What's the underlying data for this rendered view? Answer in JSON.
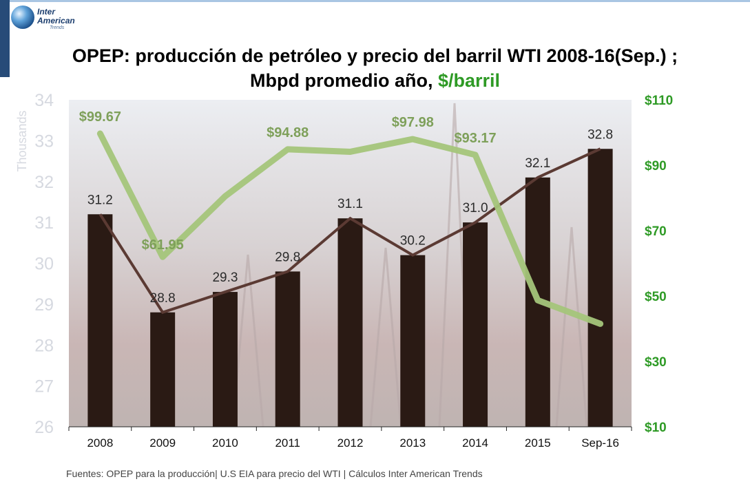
{
  "logo": {
    "line1": "Inter",
    "line2": "American",
    "line3": "Trends"
  },
  "title": {
    "line1": "OPEP: producción de petróleo y precio del barril WTI 2008-16(Sep.) ;",
    "line2_main": "Mbpd promedio año, ",
    "line2_accent": "$/barril"
  },
  "source": "Fuentes: OPEP para la producción| U.S EIA para precio del WTI | Cálculos Inter American Trends",
  "colors": {
    "bars": "#2a1a14",
    "production_line": "#5b3a33",
    "price_line": "#a4c57a",
    "price_label": "#7ea05a",
    "right_axis": "#2e9a25",
    "left_axis": "#d6d9e0"
  },
  "chart_data": {
    "type": "bar",
    "categories": [
      "2008",
      "2009",
      "2010",
      "2011",
      "2012",
      "2013",
      "2014",
      "2015",
      "Sep-16"
    ],
    "series": [
      {
        "values": [
          31.2,
          28.8,
          29.3,
          29.8,
          31.1,
          30.2,
          31.0,
          32.1,
          32.8
        ],
        "labels": [
          "31.2",
          "28.8",
          "29.3",
          "29.8",
          "31.1",
          "30.2",
          "31.0",
          "32.1",
          "32.8"
        ],
        "axis": "left"
      },
      {
        "values": [
          99.67,
          61.95,
          80.5,
          94.88,
          94.1,
          97.98,
          93.17,
          48.7,
          41.5
        ],
        "labels": [
          "$99.67",
          "$61.95",
          "",
          "$94.88",
          "",
          "$97.98",
          "$93.17",
          "",
          ""
        ],
        "axis": "right"
      }
    ],
    "left_axis": {
      "title": "Thousands",
      "ylim": [
        26,
        34
      ],
      "ticks": [
        "26",
        "27",
        "28",
        "29",
        "30",
        "31",
        "32",
        "33",
        "34"
      ]
    },
    "right_axis": {
      "ylim": [
        10,
        110
      ],
      "ticks": [
        "$10",
        "$30",
        "$50",
        "$70",
        "$90",
        "$110"
      ]
    },
    "grid": false
  }
}
